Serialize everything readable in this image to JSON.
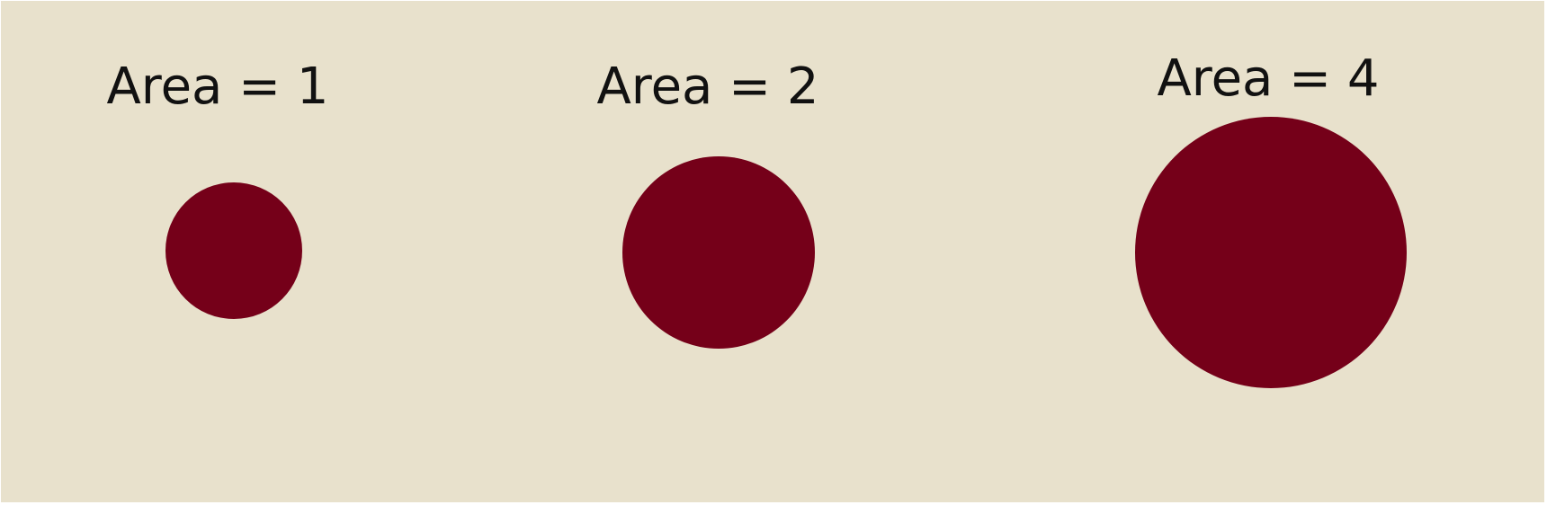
{
  "colors": {
    "background": "#e8e1cc",
    "circle": "#750019",
    "text": "#111111"
  },
  "items": [
    {
      "label": "Area = 1",
      "area": 1
    },
    {
      "label": "Area = 2",
      "area": 2
    },
    {
      "label": "Area = 4",
      "area": 4
    }
  ]
}
